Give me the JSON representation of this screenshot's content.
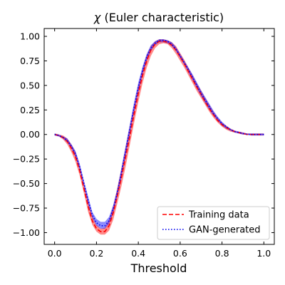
{
  "chart_data": {
    "type": "line",
    "title_symbol": "χ",
    "title_text": " (Euler characteristic)",
    "xlabel": "Threshold",
    "ylabel": "",
    "xlim": [
      -0.05,
      1.05
    ],
    "ylim": [
      -1.12,
      1.08
    ],
    "grid": false,
    "legend_position": "lower-right",
    "x_ticks": [
      0.0,
      0.2,
      0.4,
      0.6,
      0.8,
      1.0
    ],
    "x_tick_labels": [
      "0.0",
      "0.2",
      "0.4",
      "0.6",
      "0.8",
      "1.0"
    ],
    "y_ticks": [
      1.0,
      0.75,
      0.5,
      0.25,
      0.0,
      -0.25,
      -0.5,
      -0.75,
      -1.0
    ],
    "y_tick_labels": [
      "1.00",
      "0.75",
      "0.50",
      "0.25",
      "0.00",
      "−0.25",
      "−0.50",
      "−0.75",
      "−1.00"
    ],
    "x": [
      0.0,
      0.02,
      0.04,
      0.06,
      0.08,
      0.1,
      0.12,
      0.14,
      0.16,
      0.18,
      0.2,
      0.22,
      0.24,
      0.26,
      0.28,
      0.3,
      0.32,
      0.34,
      0.36,
      0.38,
      0.4,
      0.42,
      0.44,
      0.46,
      0.48,
      0.5,
      0.52,
      0.54,
      0.56,
      0.58,
      0.6,
      0.62,
      0.64,
      0.66,
      0.68,
      0.7,
      0.72,
      0.74,
      0.76,
      0.78,
      0.8,
      0.82,
      0.84,
      0.86,
      0.88,
      0.9,
      0.92,
      0.94,
      0.96,
      0.98,
      1.0
    ],
    "series": [
      {
        "name": "Training data",
        "color": "#ff0000",
        "dash": "dashed",
        "band_color": "#ff0000",
        "values": [
          0.0,
          -0.01,
          -0.03,
          -0.07,
          -0.14,
          -0.23,
          -0.37,
          -0.55,
          -0.73,
          -0.88,
          -0.96,
          -0.99,
          -0.99,
          -0.93,
          -0.8,
          -0.62,
          -0.43,
          -0.22,
          -0.01,
          0.21,
          0.42,
          0.6,
          0.75,
          0.86,
          0.92,
          0.95,
          0.95,
          0.94,
          0.91,
          0.86,
          0.79,
          0.72,
          0.64,
          0.56,
          0.48,
          0.41,
          0.33,
          0.26,
          0.2,
          0.14,
          0.1,
          0.07,
          0.05,
          0.03,
          0.02,
          0.01,
          0.0,
          0.0,
          0.0,
          0.0,
          0.0
        ],
        "lower": [
          -0.01,
          -0.02,
          -0.05,
          -0.1,
          -0.18,
          -0.28,
          -0.42,
          -0.6,
          -0.79,
          -0.92,
          -0.99,
          -1.02,
          -1.02,
          -0.98,
          -0.87,
          -0.7,
          -0.52,
          -0.32,
          -0.1,
          0.12,
          0.33,
          0.52,
          0.68,
          0.8,
          0.88,
          0.92,
          0.93,
          0.92,
          0.88,
          0.82,
          0.75,
          0.68,
          0.6,
          0.52,
          0.44,
          0.37,
          0.3,
          0.23,
          0.17,
          0.12,
          0.08,
          0.05,
          0.03,
          0.02,
          0.01,
          0.0,
          0.0,
          -0.01,
          -0.01,
          -0.01,
          -0.01
        ],
        "upper": [
          0.01,
          0.0,
          -0.01,
          -0.04,
          -0.1,
          -0.18,
          -0.32,
          -0.5,
          -0.67,
          -0.83,
          -0.92,
          -0.96,
          -0.95,
          -0.87,
          -0.73,
          -0.54,
          -0.34,
          -0.12,
          0.09,
          0.3,
          0.5,
          0.67,
          0.81,
          0.9,
          0.95,
          0.97,
          0.97,
          0.96,
          0.94,
          0.9,
          0.83,
          0.76,
          0.68,
          0.6,
          0.52,
          0.45,
          0.37,
          0.3,
          0.23,
          0.17,
          0.12,
          0.09,
          0.06,
          0.04,
          0.03,
          0.02,
          0.01,
          0.01,
          0.01,
          0.01,
          0.01
        ]
      },
      {
        "name": "GAN-generated",
        "color": "#0000ee",
        "dash": "dotted",
        "band_color": "#0000ff",
        "values": [
          0.0,
          -0.01,
          -0.03,
          -0.06,
          -0.12,
          -0.2,
          -0.33,
          -0.5,
          -0.67,
          -0.82,
          -0.9,
          -0.93,
          -0.93,
          -0.88,
          -0.76,
          -0.59,
          -0.38,
          -0.16,
          0.06,
          0.28,
          0.48,
          0.65,
          0.79,
          0.88,
          0.93,
          0.96,
          0.96,
          0.95,
          0.92,
          0.87,
          0.8,
          0.73,
          0.66,
          0.58,
          0.5,
          0.42,
          0.35,
          0.28,
          0.21,
          0.16,
          0.11,
          0.08,
          0.05,
          0.03,
          0.02,
          0.01,
          0.0,
          0.0,
          0.0,
          0.0,
          0.0
        ],
        "lower": [
          -0.01,
          -0.02,
          -0.04,
          -0.08,
          -0.14,
          -0.23,
          -0.36,
          -0.53,
          -0.71,
          -0.85,
          -0.93,
          -0.96,
          -0.96,
          -0.91,
          -0.8,
          -0.63,
          -0.43,
          -0.21,
          0.01,
          0.23,
          0.43,
          0.61,
          0.75,
          0.85,
          0.91,
          0.94,
          0.94,
          0.93,
          0.9,
          0.85,
          0.78,
          0.71,
          0.63,
          0.55,
          0.47,
          0.39,
          0.32,
          0.25,
          0.19,
          0.14,
          0.09,
          0.06,
          0.04,
          0.02,
          0.01,
          0.0,
          0.0,
          -0.01,
          -0.01,
          -0.01,
          -0.01
        ],
        "upper": [
          0.01,
          0.0,
          -0.02,
          -0.04,
          -0.1,
          -0.17,
          -0.3,
          -0.47,
          -0.63,
          -0.79,
          -0.86,
          -0.89,
          -0.89,
          -0.84,
          -0.72,
          -0.55,
          -0.33,
          -0.11,
          0.11,
          0.33,
          0.53,
          0.69,
          0.82,
          0.91,
          0.95,
          0.97,
          0.97,
          0.96,
          0.94,
          0.89,
          0.82,
          0.75,
          0.68,
          0.61,
          0.53,
          0.45,
          0.38,
          0.31,
          0.24,
          0.18,
          0.13,
          0.09,
          0.06,
          0.04,
          0.03,
          0.02,
          0.01,
          0.01,
          0.01,
          0.01,
          0.01
        ]
      }
    ]
  }
}
